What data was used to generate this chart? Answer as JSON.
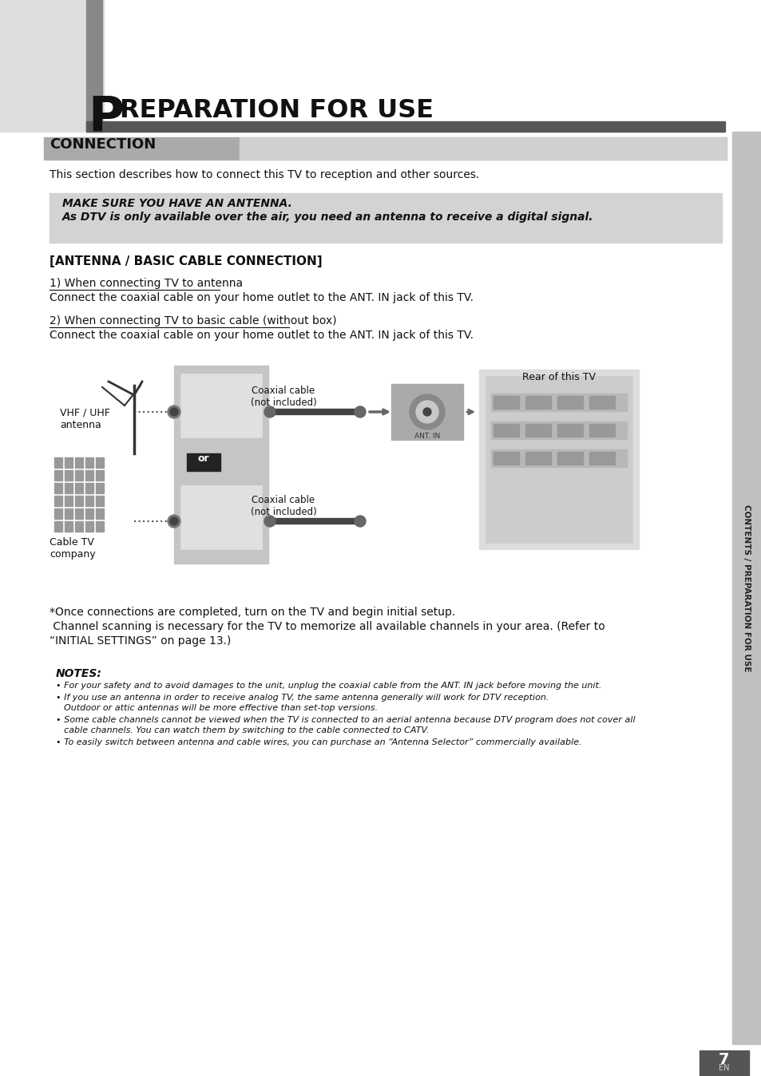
{
  "page_bg": "#ffffff",
  "title_letter": "P",
  "title_text": "REPARATION FOR USE",
  "section_title": "CONNECTION",
  "right_sidebar_text": "CONTENTS / PREPARATION FOR USE",
  "intro_text": "This section describes how to connect this TV to reception and other sources.",
  "warning_line1": "MAKE SURE YOU HAVE AN ANTENNA.",
  "warning_line2": "As DTV is only available over the air, you need an antenna to receive a digital signal.",
  "antenna_section_title": "[ANTENNA / BASIC CABLE CONNECTION]",
  "item1_label": "1) When connecting TV to antenna",
  "item1_text": "Connect the coaxial cable on your home outlet to the ANT. IN jack of this TV.",
  "item2_label": "2) When connecting TV to basic cable (without box)",
  "item2_text": "Connect the coaxial cable on your home outlet to the ANT. IN jack of this TV.",
  "diagram_label_vhf": "VHF / UHF\nantenna",
  "diagram_label_cable": "Cable TV\ncompany",
  "diagram_label_coax1": "Coaxial cable\n(not included)",
  "diagram_label_coax2": "Coaxial cable\n(not included)",
  "diagram_label_rear": "Rear of this TV",
  "diagram_label_or": "or",
  "followup_text1": "*Once connections are completed, turn on the TV and begin initial setup.",
  "followup_text2": " Channel scanning is necessary for the TV to memorize all available channels in your area. (Refer to",
  "followup_text3": "“INITIAL SETTINGS” on page 13.)",
  "notes_title": "NOTES:",
  "note1": "• For your safety and to avoid damages to the unit, unplug the coaxial cable from the ANT. IN jack before moving the unit.",
  "note2": "• If you use an antenna in order to receive analog TV, the same antenna generally will work for DTV reception.\n   Outdoor or attic antennas will be more effective than set-top versions.",
  "note3": "• Some cable channels cannot be viewed when the TV is connected to an aerial antenna because DTV program does not cover all\n   cable channels. You can watch them by switching to the cable connected to CATV.",
  "note4": "• To easily switch between antenna and cable wires, you can purchase an “Antenna Selector” commercially available.",
  "page_number": "7",
  "page_number_label": "EN"
}
